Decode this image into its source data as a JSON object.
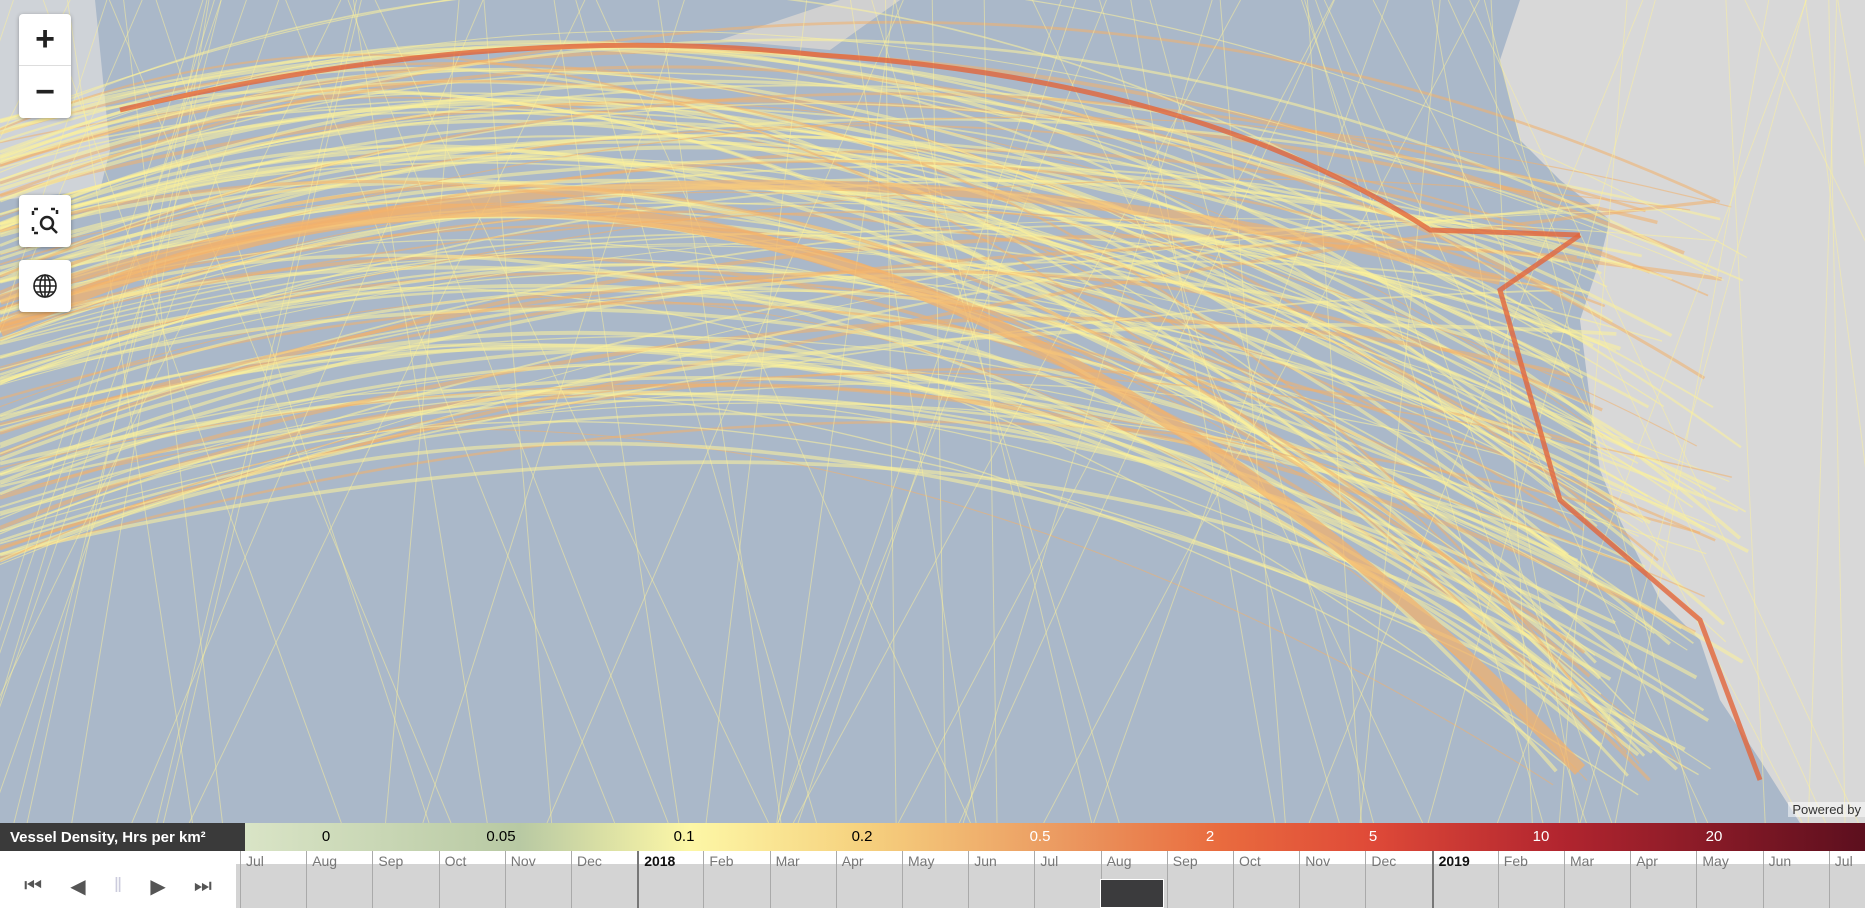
{
  "map": {
    "controls": {
      "zoom_in": "+",
      "zoom_out": "−",
      "search_icon": "zoom-to-area-icon",
      "globe_icon": "globe-icon"
    },
    "attribution": "Powered by",
    "colors": {
      "ocean": "#a9b7c8",
      "land": "#d9d9d9",
      "lane_low": "#fdf29b",
      "lane_mid": "#f3b06a",
      "lane_high": "#e2653b"
    }
  },
  "legend": {
    "title": "Vessel Density, Hrs per km²",
    "values": [
      "0",
      "0.05",
      "0.1",
      "0.2",
      "0.5",
      "2",
      "5",
      "10",
      "20"
    ]
  },
  "timeline": {
    "controls": [
      "skip-to-start",
      "step-back",
      "pause",
      "play",
      "skip-to-end"
    ],
    "months": [
      "Jul",
      "Aug",
      "Sep",
      "Oct",
      "Nov",
      "Dec",
      "2018",
      "Feb",
      "Mar",
      "Apr",
      "May",
      "Jun",
      "Jul",
      "Aug",
      "Sep",
      "Oct",
      "Nov",
      "Dec",
      "2019",
      "Feb",
      "Mar",
      "Apr",
      "May",
      "Jun",
      "Jul"
    ],
    "selected": "Aug 2018"
  }
}
